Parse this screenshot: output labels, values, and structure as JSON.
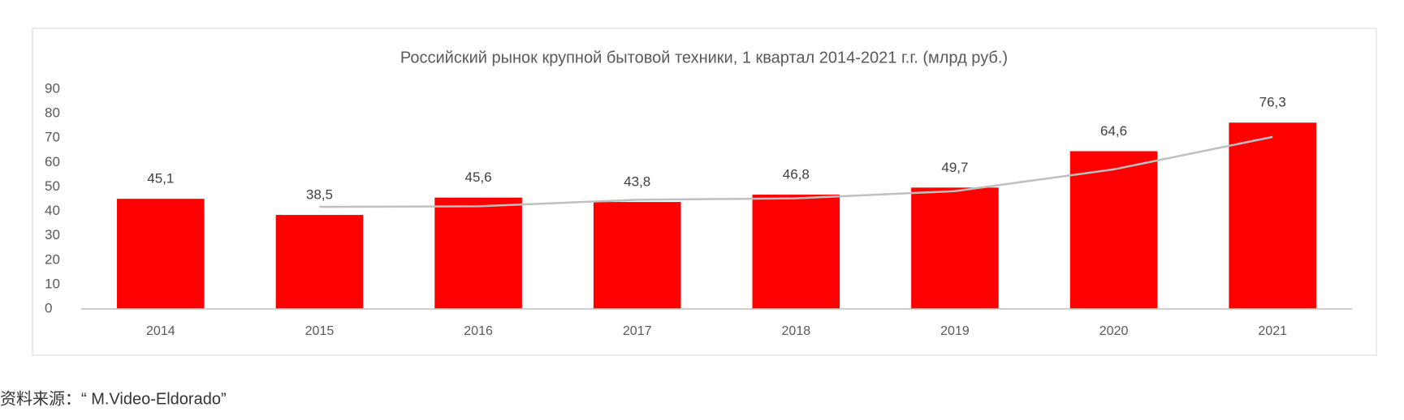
{
  "chart_data": {
    "type": "bar",
    "title": "Российский рынок крупной бытовой техники, 1 квартал 2014-2021 г.г. (млрд руб.)",
    "categories": [
      "2014",
      "2015",
      "2016",
      "2017",
      "2018",
      "2019",
      "2020",
      "2021"
    ],
    "values": [
      45.1,
      38.5,
      45.6,
      43.8,
      46.8,
      49.7,
      64.6,
      76.3
    ],
    "value_labels": [
      "45,1",
      "38,5",
      "45,6",
      "43,8",
      "46,8",
      "49,7",
      "64,6",
      "76,3"
    ],
    "color": "#ff0000",
    "trendline": {
      "color": "#bfbfbf",
      "values": [
        null,
        41.8,
        42.05,
        44.7,
        45.3,
        48.25,
        57.15,
        70.45
      ]
    },
    "ylim": [
      0,
      90
    ],
    "yticks": [
      0,
      10,
      20,
      30,
      40,
      50,
      60,
      70,
      80,
      90
    ],
    "grid": false
  },
  "source": "资料来源：“ M.Video-Eldorado”"
}
